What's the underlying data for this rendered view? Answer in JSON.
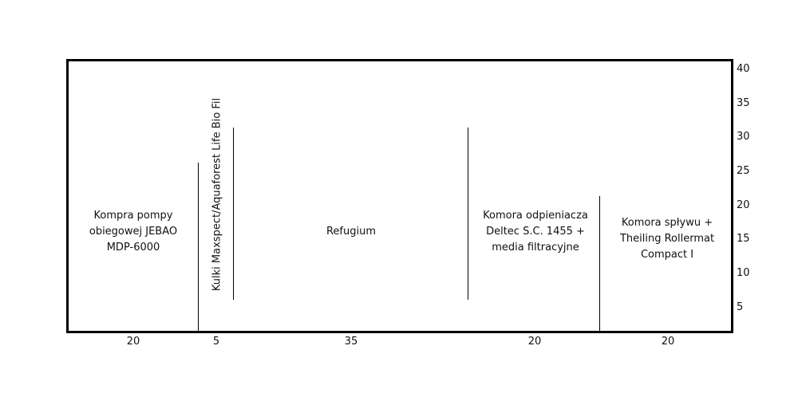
{
  "chambers": [
    {
      "id": "pump",
      "label": "Kompra pompy obiegowej JEBAO MDP-6000",
      "width": "20"
    },
    {
      "id": "media",
      "label": "Kulki Maxspect/Aquaforest Life Bio Fil",
      "width": "5"
    },
    {
      "id": "refugium",
      "label": "Refugium",
      "width": "35"
    },
    {
      "id": "skimmer",
      "label": "Komora odpieniacza Deltec S.C. 1455 + media filtracyjne",
      "width": "20"
    },
    {
      "id": "return",
      "label": "Komora spływu + Theiling Rollermat Compact I",
      "width": "20"
    }
  ],
  "scale": [
    "40",
    "35",
    "30",
    "25",
    "20",
    "15",
    "10",
    "5"
  ]
}
